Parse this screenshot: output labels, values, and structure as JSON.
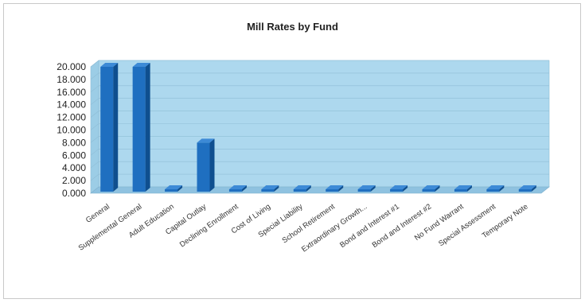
{
  "chart_data": {
    "type": "bar",
    "title": "Mill Rates by Fund",
    "xlabel": "",
    "ylabel": "",
    "ylim": [
      0,
      20
    ],
    "y_ticks": [
      "0.000",
      "2.000",
      "4.000",
      "6.000",
      "8.000",
      "10.000",
      "12.000",
      "14.000",
      "16.000",
      "18.000",
      "20.000"
    ],
    "grid": true,
    "legend": "none",
    "categories": [
      "General",
      "Supplemental General",
      "Adult Education",
      "Capital Outlay",
      "Declining Enrollment",
      "Cost of Living",
      "Special Liability",
      "School Retirement",
      "Extraordinary Growth...",
      "Bond and Interest #1",
      "Bond and Interest #2",
      "No Fund Warrant",
      "Special Assessment",
      "Temporary Note"
    ],
    "values": [
      20.0,
      20.0,
      0.0,
      8.0,
      0.0,
      0.0,
      0.0,
      0.0,
      0.0,
      0.0,
      0.0,
      0.0,
      0.0,
      0.0
    ],
    "colors": {
      "bar_front": "#1f6fc0",
      "bar_side": "#0f4f8f",
      "bar_top": "#3d8ad6",
      "back_wall": "#add8ee",
      "floor": "#8fc2e0",
      "side_wall": "#9ccde6"
    }
  }
}
